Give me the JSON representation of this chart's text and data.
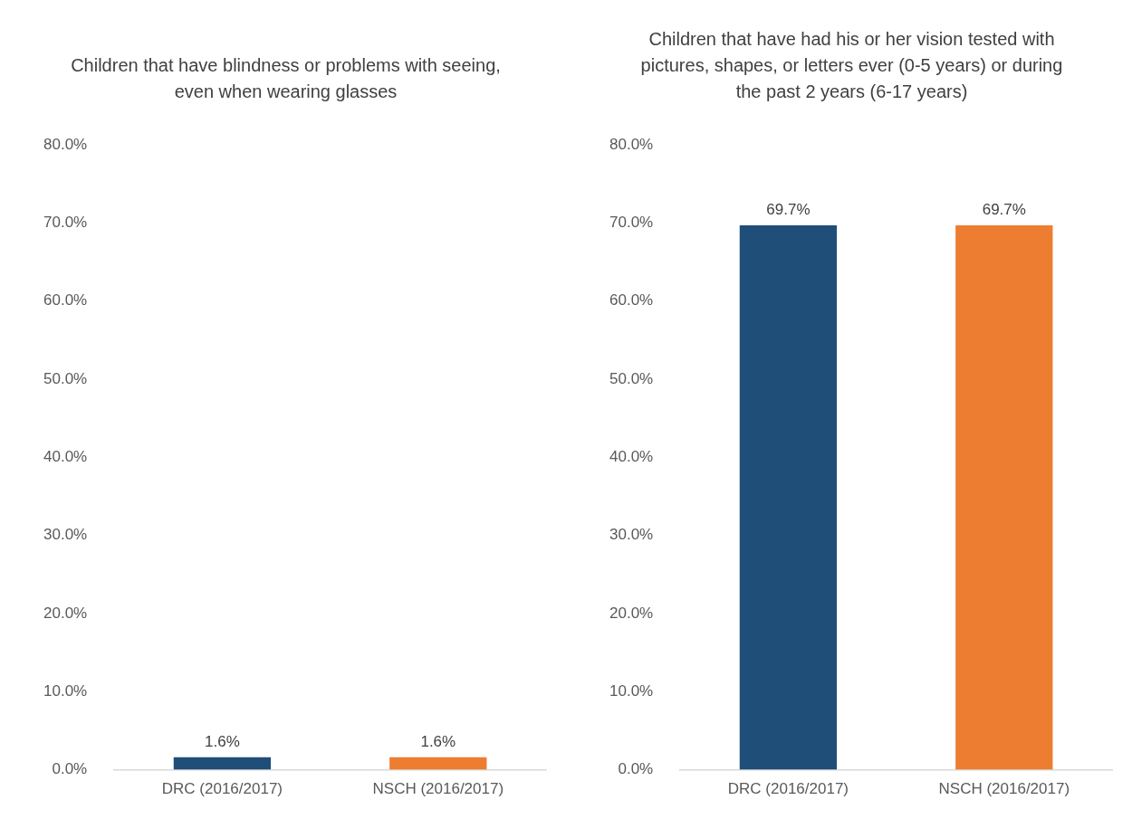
{
  "chart_data": [
    {
      "type": "bar",
      "title": "Children that have blindness or problems with seeing, even when wearing glasses",
      "categories": [
        "DRC (2016/2017)",
        "NSCH (2016/2017)"
      ],
      "values": [
        1.6,
        1.6
      ],
      "colors": [
        "#1f4e79",
        "#ed7d31"
      ],
      "value_labels": [
        "1.6%",
        "1.6%"
      ],
      "ylim": [
        0,
        80
      ],
      "yticks": [
        {
          "value": 0,
          "label": "0.0%"
        },
        {
          "value": 10,
          "label": "10.0%"
        },
        {
          "value": 20,
          "label": "20.0%"
        },
        {
          "value": 30,
          "label": "30.0%"
        },
        {
          "value": 40,
          "label": "40.0%"
        },
        {
          "value": 50,
          "label": "50.0%"
        },
        {
          "value": 60,
          "label": "60.0%"
        },
        {
          "value": 70,
          "label": "70.0%"
        },
        {
          "value": 80,
          "label": "80.0%"
        }
      ],
      "grid": false,
      "legend": false
    },
    {
      "type": "bar",
      "title": "Children that have had his or her vision tested with pictures, shapes, or letters ever (0-5 years) or during the past 2 years (6-17 years)",
      "categories": [
        "DRC (2016/2017)",
        "NSCH (2016/2017)"
      ],
      "values": [
        69.7,
        69.7
      ],
      "colors": [
        "#1f4e79",
        "#ed7d31"
      ],
      "value_labels": [
        "69.7%",
        "69.7%"
      ],
      "ylim": [
        0,
        80
      ],
      "yticks": [
        {
          "value": 0,
          "label": "0.0%"
        },
        {
          "value": 10,
          "label": "10.0%"
        },
        {
          "value": 20,
          "label": "20.0%"
        },
        {
          "value": 30,
          "label": "30.0%"
        },
        {
          "value": 40,
          "label": "40.0%"
        },
        {
          "value": 50,
          "label": "50.0%"
        },
        {
          "value": 60,
          "label": "60.0%"
        },
        {
          "value": 70,
          "label": "70.0%"
        },
        {
          "value": 80,
          "label": "80.0%"
        }
      ],
      "grid": false,
      "legend": false
    }
  ]
}
